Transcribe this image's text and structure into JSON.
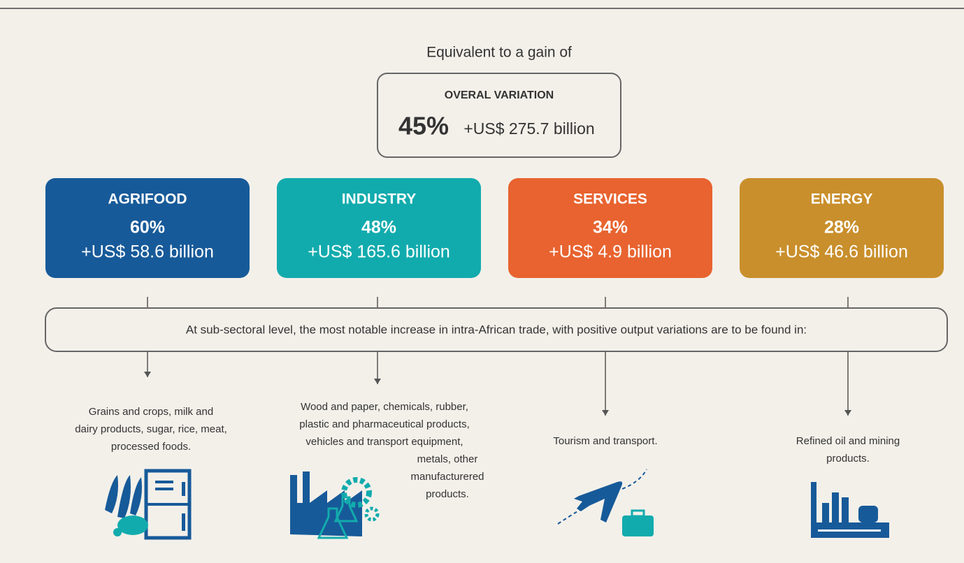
{
  "intro": "Equivalent to a gain of",
  "overall": {
    "title": "OVERAL VARIATION",
    "percent": "45%",
    "amount": "+US$ 275.7 billion"
  },
  "sectors": [
    {
      "name": "AGRIFOOD",
      "percent": "60%",
      "amount": "+US$ 58.6 billion",
      "color": "#175a99"
    },
    {
      "name": "INDUSTRY",
      "percent": "48%",
      "amount": "+US$ 165.6 billion",
      "color": "#12abad"
    },
    {
      "name": "SERVICES",
      "percent": "34%",
      "amount": "+US$ 4.9 billion",
      "color": "#e8632f"
    },
    {
      "name": "ENERGY",
      "percent": "28%",
      "amount": "+US$ 46.6 billion",
      "color": "#c98f2c"
    }
  ],
  "note": "At sub-sectoral level, the most notable increase in intra-African trade, with positive output variations are to be found in:",
  "subsectors": [
    [
      "Grains and crops, milk and",
      "dairy products, sugar, rice, meat,",
      "processed foods."
    ],
    [
      "Wood and paper, chemicals, rubber,",
      "plastic and pharmaceutical products,",
      "vehicles and transport equipment,",
      "metals, other",
      "manufacturered",
      "products."
    ],
    [
      "Tourism and transport."
    ],
    [
      "Refined oil and mining",
      "products."
    ]
  ]
}
